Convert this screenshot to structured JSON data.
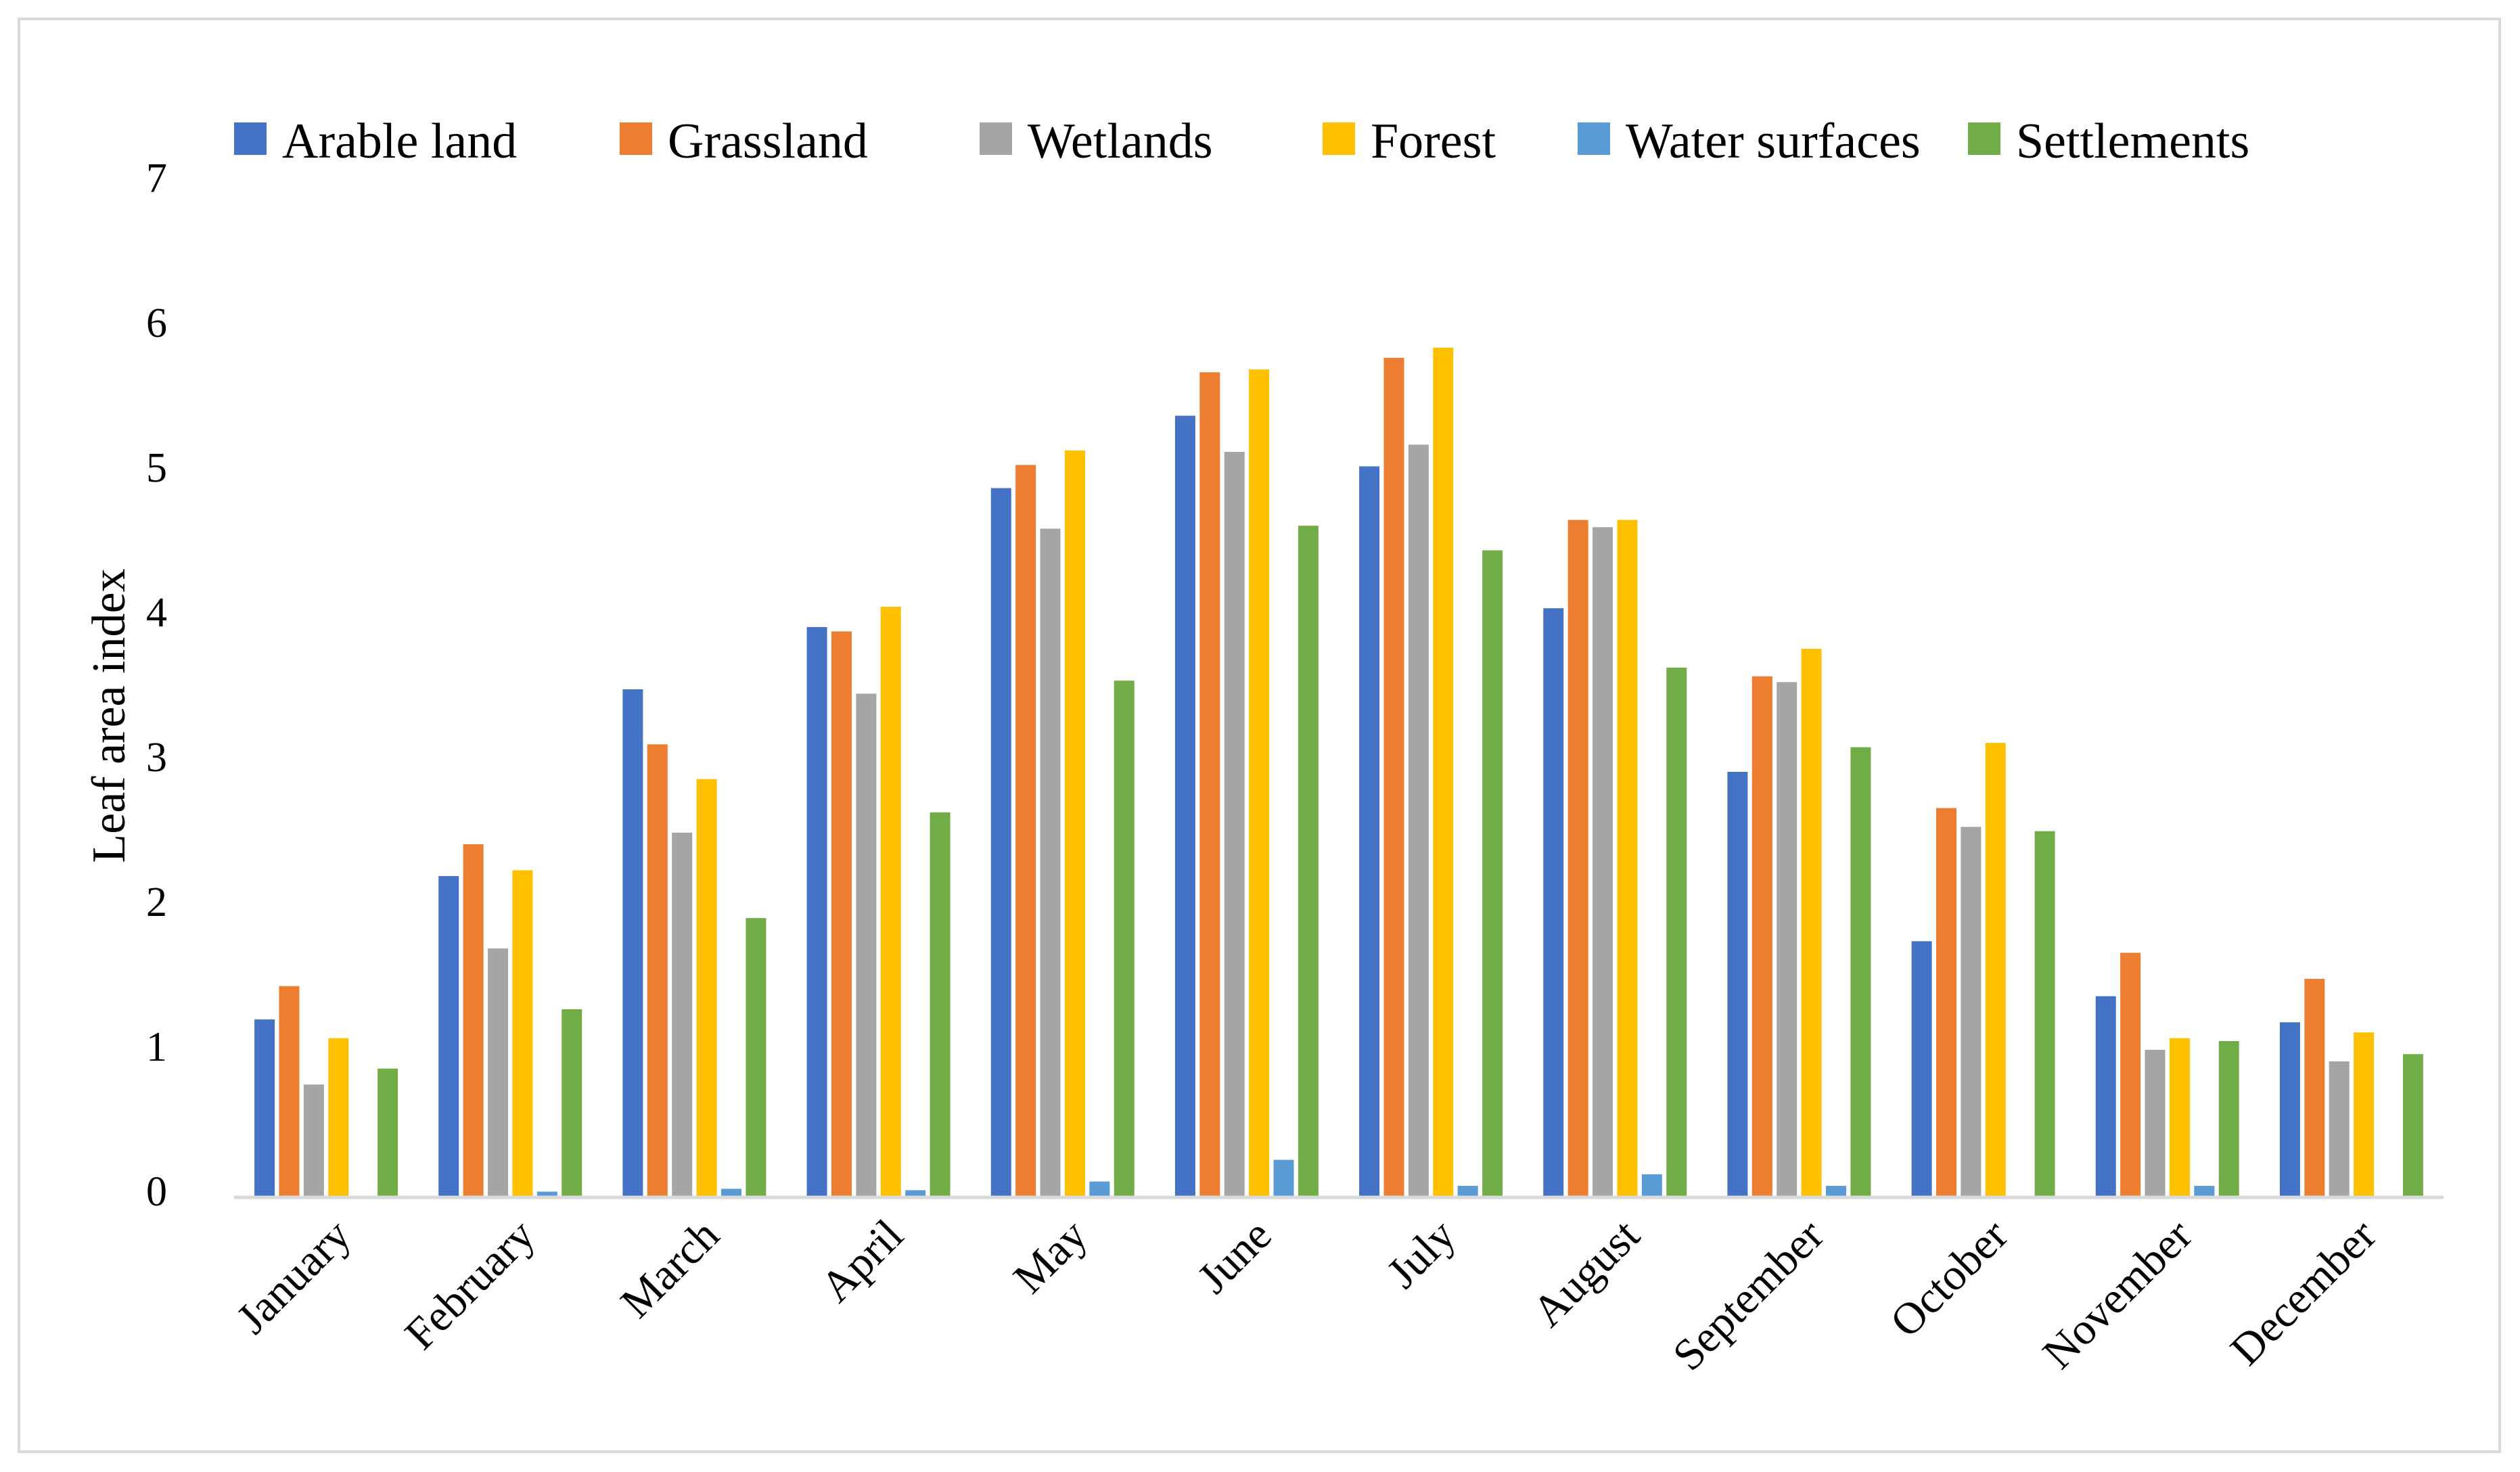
{
  "chart_data": {
    "type": "bar",
    "title": "",
    "xlabel": "",
    "ylabel": "Leaf area index",
    "ylim": [
      0,
      7
    ],
    "yticks": [
      0,
      1,
      2,
      3,
      4,
      5,
      6,
      7
    ],
    "grid": false,
    "legend_position": "top",
    "categories": [
      "January",
      "February",
      "March",
      "April",
      "May",
      "June",
      "July",
      "August",
      "September",
      "October",
      "November",
      "December"
    ],
    "series": [
      {
        "name": "Arable land",
        "color": "#4472c4",
        "values": [
          1.22,
          2.21,
          3.5,
          3.93,
          4.89,
          5.39,
          5.04,
          4.06,
          2.93,
          1.76,
          1.38,
          1.2
        ]
      },
      {
        "name": "Grassland",
        "color": "#ed7d31",
        "values": [
          1.45,
          2.43,
          3.12,
          3.9,
          5.05,
          5.69,
          5.79,
          4.67,
          3.59,
          2.68,
          1.68,
          1.5
        ]
      },
      {
        "name": "Wetlands",
        "color": "#a5a5a5",
        "values": [
          0.77,
          1.71,
          2.51,
          3.47,
          4.61,
          5.14,
          5.19,
          4.62,
          3.55,
          2.55,
          1.01,
          0.93
        ]
      },
      {
        "name": "Forest",
        "color": "#ffc000",
        "values": [
          1.09,
          2.25,
          2.88,
          4.07,
          5.15,
          5.71,
          5.86,
          4.67,
          3.78,
          3.13,
          1.09,
          1.13
        ]
      },
      {
        "name": "Water surfaces",
        "color": "#5b9bd5",
        "values": [
          0.0,
          0.03,
          0.05,
          0.04,
          0.1,
          0.25,
          0.07,
          0.15,
          0.07,
          0.0,
          0.07,
          0.0
        ]
      },
      {
        "name": "Settlements",
        "color": "#70ad47",
        "values": [
          0.88,
          1.29,
          1.92,
          2.65,
          3.56,
          4.63,
          4.46,
          3.65,
          3.1,
          2.52,
          1.07,
          0.98
        ]
      }
    ],
    "axis_color": "#d9d9d9"
  }
}
